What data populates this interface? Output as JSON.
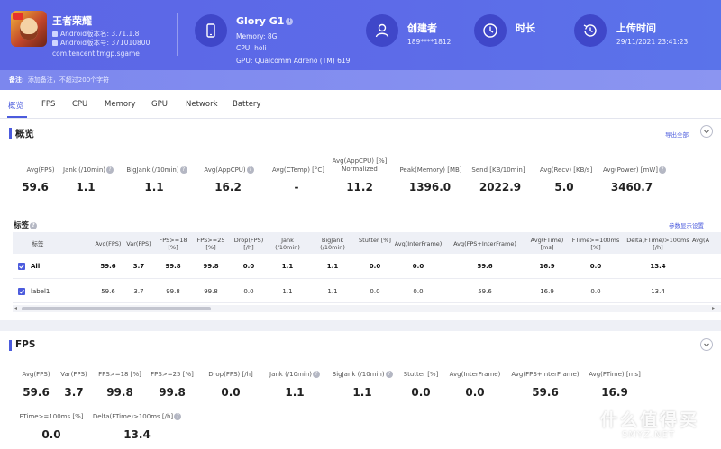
{
  "header": {
    "app_name": "王者荣耀",
    "android_version_name": "Android版本名: 3.71.1.8",
    "android_version_code": "Android版本号: 371010800",
    "package": "com.tencent.tmgp.sgame",
    "device_name": "Glory G1",
    "memory": "Memory: 8G",
    "cpu": "CPU: holi",
    "gpu": "GPU: Qualcomm Adreno (TM) 619",
    "creator_title": "创建者",
    "creator_value": "189****1812",
    "duration_title": "时长",
    "upload_title": "上传时间",
    "upload_value": "29/11/2021 23:41:23"
  },
  "remark": {
    "label": "备注:",
    "placeholder": "添加备注，不超过200个字符"
  },
  "tabs": [
    "概览",
    "FPS",
    "CPU",
    "Memory",
    "GPU",
    "Network",
    "Battery"
  ],
  "overview": {
    "title": "概览",
    "export": "导出全部",
    "metrics": [
      {
        "label": "Avg(FPS)",
        "value": "59.6"
      },
      {
        "label": "Jank (/10min)",
        "value": "1.1"
      },
      {
        "label": "BigJank (/10min)",
        "value": "1.1"
      },
      {
        "label": "Avg(AppCPU)",
        "value": "16.2"
      },
      {
        "label": "Avg(CTemp) [°C]",
        "value": "-"
      },
      {
        "label": "Avg(AppCPU) [%] Normalized",
        "value": "11.2"
      },
      {
        "label": "Peak(Memory) [MB]",
        "value": "1396.0"
      },
      {
        "label": "Send [KB/10min]",
        "value": "2022.9"
      },
      {
        "label": "Avg(Recv) [KB/s]",
        "value": "5.0"
      },
      {
        "label": "Avg(Power) [mW]",
        "value": "3460.7"
      }
    ],
    "tags_title": "标签",
    "param_settings": "参数显示设置",
    "table": {
      "headers": [
        "标签",
        "Avg(FPS)",
        "Var(FPS)",
        "FPS>=18 [%]",
        "FPS>=25 [%]",
        "Drop(FPS) [/h]",
        "Jank (/10min)",
        "BigJank (/10min)",
        "Stutter [%]",
        "Avg(InterFrame)",
        "Avg(FPS+InterFrame)",
        "Avg(FTime) [ms]",
        "FTime>=100ms [%]",
        "Delta(FTime)>100ms [/h]",
        "Avg(A"
      ],
      "rows": [
        [
          "All",
          "59.6",
          "3.7",
          "99.8",
          "99.8",
          "0.0",
          "1.1",
          "1.1",
          "0.0",
          "0.0",
          "59.6",
          "16.9",
          "0.0",
          "13.4"
        ],
        [
          "label1",
          "59.6",
          "3.7",
          "99.8",
          "99.8",
          "0.0",
          "1.1",
          "1.1",
          "0.0",
          "0.0",
          "59.6",
          "16.9",
          "0.0",
          "13.4"
        ]
      ]
    }
  },
  "fps": {
    "title": "FPS",
    "metrics": [
      {
        "label": "Avg(FPS)",
        "value": "59.6"
      },
      {
        "label": "Var(FPS)",
        "value": "3.7"
      },
      {
        "label": "FPS>=18 [%]",
        "value": "99.8"
      },
      {
        "label": "FPS>=25 [%]",
        "value": "99.8"
      },
      {
        "label": "Drop(FPS) [/h]",
        "value": "0.0"
      },
      {
        "label": "Jank (/10min)",
        "value": "1.1"
      },
      {
        "label": "BigJank (/10min)",
        "value": "1.1"
      },
      {
        "label": "Stutter [%]",
        "value": "0.0"
      },
      {
        "label": "Avg(InterFrame)",
        "value": "0.0"
      },
      {
        "label": "Avg(FPS+InterFrame)",
        "value": "59.6"
      },
      {
        "label": "Avg(FTime) [ms]",
        "value": "16.9"
      },
      {
        "label": "FTime>=100ms [%]",
        "value": "0.0"
      },
      {
        "label": "Delta(FTime)>100ms [/h]",
        "value": "13.4"
      }
    ]
  },
  "watermark": {
    "logo_char": "值",
    "big": "什么值得买",
    "small": "SMYZ.NET"
  }
}
